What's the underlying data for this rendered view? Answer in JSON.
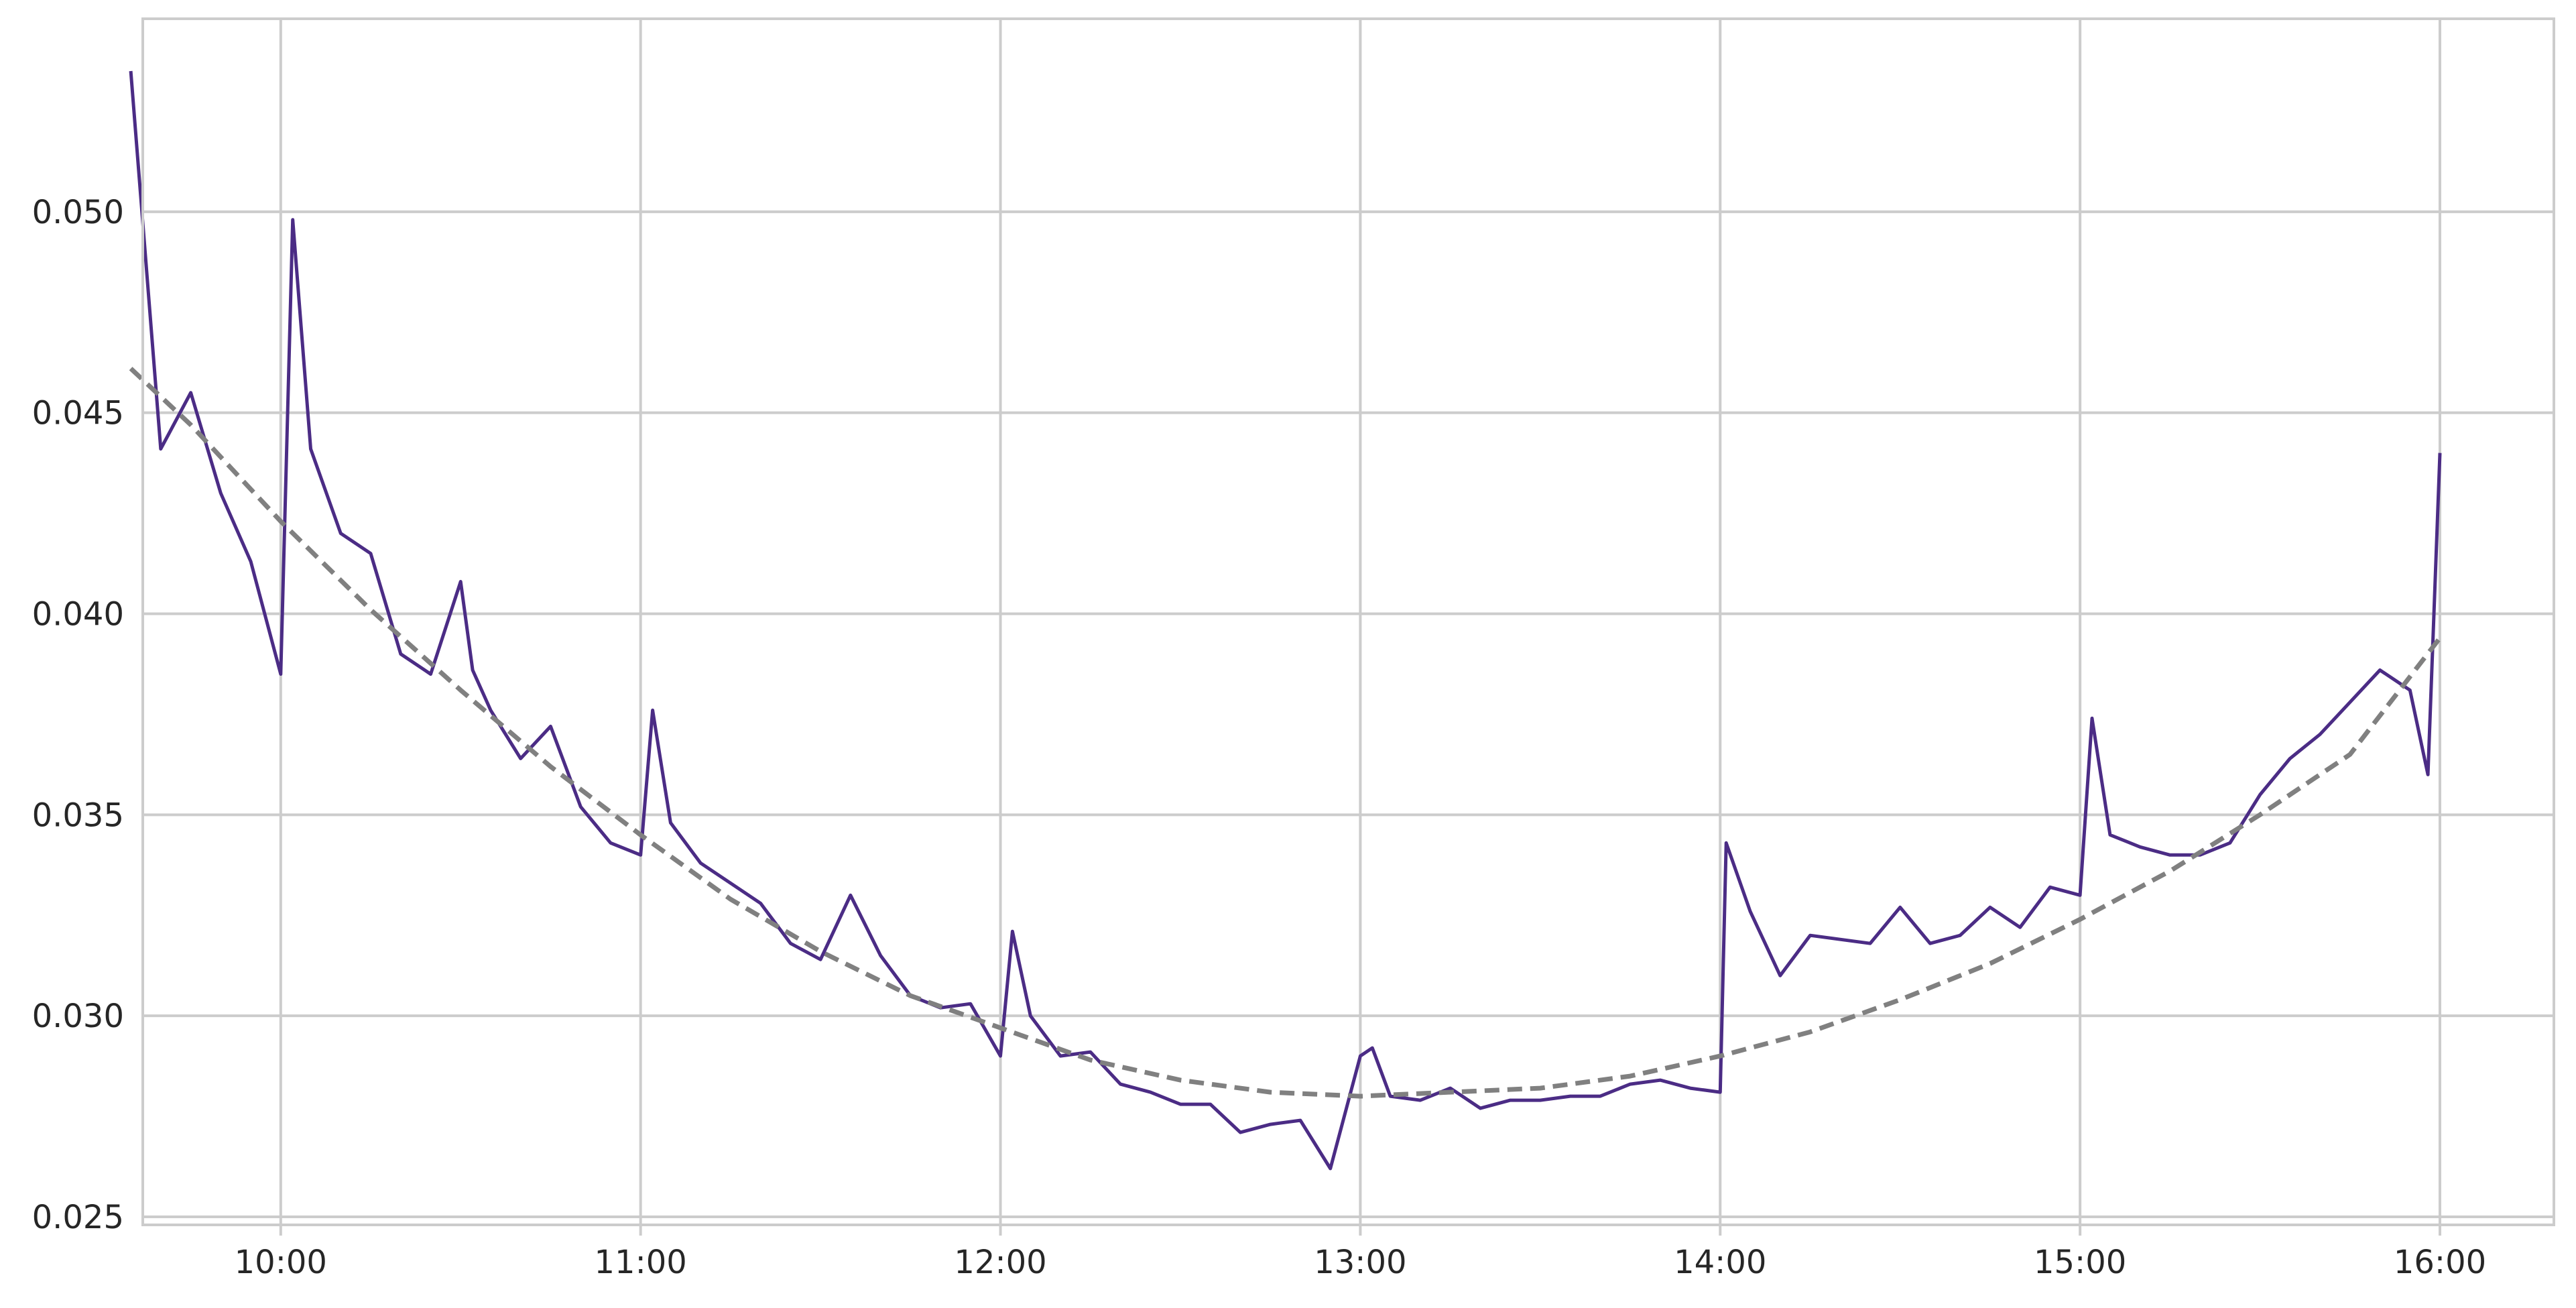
{
  "chart_data": {
    "type": "line",
    "title": "",
    "xlabel": "",
    "ylabel": "",
    "xlim": [
      "09:37",
      "16:19"
    ],
    "ylim": [
      0.0248,
      0.0548
    ],
    "x_ticks": [
      "10:00",
      "11:00",
      "12:00",
      "13:00",
      "14:00",
      "15:00",
      "16:00"
    ],
    "y_ticks": [
      "0.025",
      "0.030",
      "0.035",
      "0.040",
      "0.045",
      "0.050"
    ],
    "grid": true,
    "legend": "none",
    "colors": {
      "actual": "#4b2c85",
      "fit": "#808080",
      "grid": "#cccccc",
      "frame": "#cccccc"
    },
    "series": [
      {
        "style": "solid",
        "x": [
          "09:35",
          "09:40",
          "09:45",
          "09:50",
          "09:55",
          "10:00",
          "10:02",
          "10:05",
          "10:10",
          "10:15",
          "10:20",
          "10:25",
          "10:30",
          "10:32",
          "10:35",
          "10:40",
          "10:45",
          "10:50",
          "10:55",
          "11:00",
          "11:02",
          "11:05",
          "11:10",
          "11:15",
          "11:20",
          "11:25",
          "11:30",
          "11:35",
          "11:40",
          "11:45",
          "11:50",
          "11:55",
          "12:00",
          "12:02",
          "12:05",
          "12:10",
          "12:15",
          "12:20",
          "12:25",
          "12:30",
          "12:35",
          "12:40",
          "12:45",
          "12:50",
          "12:55",
          "13:00",
          "13:02",
          "13:05",
          "13:10",
          "13:15",
          "13:20",
          "13:25",
          "13:30",
          "13:35",
          "13:40",
          "13:45",
          "13:50",
          "13:55",
          "14:00",
          "14:01",
          "14:05",
          "14:10",
          "14:15",
          "14:20",
          "14:25",
          "14:30",
          "14:35",
          "14:40",
          "14:45",
          "14:50",
          "14:55",
          "15:00",
          "15:02",
          "15:05",
          "15:10",
          "15:15",
          "15:20",
          "15:25",
          "15:30",
          "15:35",
          "15:40",
          "15:45",
          "15:50",
          "15:55",
          "15:58",
          "16:00"
        ],
        "y": [
          0.0535,
          0.0441,
          0.0455,
          0.043,
          0.0413,
          0.0385,
          0.0498,
          0.0441,
          0.042,
          0.0415,
          0.039,
          0.0385,
          0.0408,
          0.0386,
          0.0376,
          0.0364,
          0.0372,
          0.0352,
          0.0343,
          0.034,
          0.0376,
          0.0348,
          0.0338,
          0.0333,
          0.0328,
          0.0318,
          0.0314,
          0.033,
          0.0315,
          0.0305,
          0.0302,
          0.0303,
          0.029,
          0.0321,
          0.03,
          0.029,
          0.0291,
          0.0283,
          0.0281,
          0.0278,
          0.0278,
          0.0271,
          0.0273,
          0.0274,
          0.0262,
          0.029,
          0.0292,
          0.028,
          0.0279,
          0.0282,
          0.0277,
          0.0279,
          0.0279,
          0.028,
          0.028,
          0.0283,
          0.0284,
          0.0282,
          0.0281,
          0.0343,
          0.0326,
          0.031,
          0.032,
          0.0319,
          0.0318,
          0.0327,
          0.0318,
          0.032,
          0.0327,
          0.0322,
          0.0332,
          0.033,
          0.0374,
          0.0345,
          0.0342,
          0.034,
          0.034,
          0.0343,
          0.0355,
          0.0364,
          0.037,
          0.0378,
          0.0386,
          0.0381,
          0.036,
          0.044
        ]
      },
      {
        "style": "dashed",
        "x": [
          "09:35",
          "09:45",
          "10:00",
          "10:15",
          "10:30",
          "10:45",
          "11:00",
          "11:15",
          "11:30",
          "11:45",
          "12:00",
          "12:15",
          "12:30",
          "12:45",
          "13:00",
          "13:15",
          "13:30",
          "13:45",
          "14:00",
          "14:15",
          "14:30",
          "14:45",
          "15:00",
          "15:15",
          "15:30",
          "15:45",
          "16:00"
        ],
        "y": [
          0.0461,
          0.0447,
          0.0423,
          0.0401,
          0.0381,
          0.0362,
          0.0345,
          0.0329,
          0.0316,
          0.0305,
          0.0297,
          0.0289,
          0.0284,
          0.0281,
          0.028,
          0.0281,
          0.0282,
          0.0285,
          0.029,
          0.0296,
          0.0304,
          0.0313,
          0.0324,
          0.0336,
          0.035,
          0.0365,
          0.0394
        ]
      }
    ]
  }
}
